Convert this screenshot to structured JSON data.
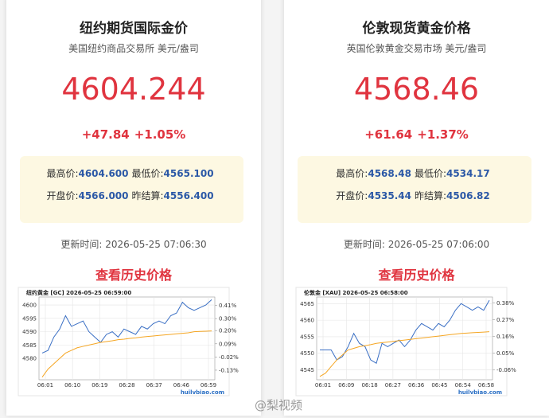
{
  "cards": [
    {
      "title": "纽约期货国际金价",
      "subtitle": "美国纽约商品交易所 美元/盎司",
      "price": "4604.244",
      "change": "+47.84",
      "change_pct": "+1.05%",
      "stats": [
        {
          "label": "最高价:",
          "value": "4604.600"
        },
        {
          "label": "最低价:",
          "value": "4565.100"
        },
        {
          "label": "开盘价:",
          "value": "4566.000"
        },
        {
          "label": "昨结算:",
          "value": "4556.400"
        }
      ],
      "updated": "更新时间: 2026-05-25 07:06:30",
      "link": "查看历史价格",
      "chart": {
        "type": "line",
        "title": "纽约黄金 [GC]  2026-05-25 06:59:00",
        "ylim": [
          4572,
          4603
        ],
        "yticks": [
          4580,
          4585,
          4590,
          4595,
          4600
        ],
        "y2lim": [
          -0.21,
          0.48
        ],
        "y2ticks": [
          {
            "value": 0.41,
            "label": "0.41%"
          },
          {
            "value": 0.3,
            "label": "0.30%"
          },
          {
            "value": 0.2,
            "label": "0.20%"
          },
          {
            "value": 0.09,
            "label": "0.09%"
          },
          {
            "value": -0.02,
            "label": "-0.02%"
          },
          {
            "value": -0.13,
            "label": "-0.13%"
          }
        ],
        "xticks": [
          "06:01",
          "06:10",
          "06:19",
          "06:28",
          "06:37",
          "06:46",
          "06:59"
        ],
        "series": [
          {
            "color": "#3a6fc4",
            "values": [
              4582,
              4583,
              4588,
              4591,
              4596,
              4592,
              4593,
              4594,
              4590,
              4588,
              4586,
              4589,
              4590,
              4588,
              4591,
              4590,
              4589,
              4592,
              4591,
              4593,
              4594,
              4593,
              4596,
              4597,
              4601,
              4599,
              4598,
              4599,
              4600,
              4602
            ]
          },
          {
            "color": "#f5a623",
            "values": [
              4573,
              4576,
              4578,
              4580,
              4582,
              4583,
              4584,
              4584.5,
              4585,
              4585.5,
              4586,
              4586.3,
              4586.6,
              4587,
              4587.2,
              4587.5,
              4587.7,
              4588,
              4588.2,
              4588.4,
              4588.6,
              4588.8,
              4589,
              4589.2,
              4589.4,
              4589.6,
              4590,
              4590.1,
              4590.2,
              4590.3
            ]
          }
        ],
        "source": "huilvbiao.com"
      }
    },
    {
      "title": "伦敦现货黄金价格",
      "subtitle": "英国伦敦黄金交易市场 美元/盎司",
      "price": "4568.46",
      "change": "+61.64",
      "change_pct": "+1.37%",
      "stats": [
        {
          "label": "最高价:",
          "value": "4568.48"
        },
        {
          "label": "最低价:",
          "value": "4534.17"
        },
        {
          "label": "开盘价:",
          "value": "4535.44"
        },
        {
          "label": "昨结算:",
          "value": "4506.82"
        }
      ],
      "updated": "更新时间: 2026-05-25 07:06:00",
      "link": "查看历史价格",
      "chart": {
        "type": "line",
        "title": "伦敦金 [XAU]  2026-05-25 06:58:00",
        "ylim": [
          4542,
          4567
        ],
        "yticks": [
          4545,
          4550,
          4555,
          4560,
          4565
        ],
        "y2lim": [
          -0.125,
          0.419
        ],
        "y2ticks": [
          {
            "value": 0.38,
            "label": "0.38%"
          },
          {
            "value": 0.27,
            "label": "0.27%"
          },
          {
            "value": 0.16,
            "label": "0.16%"
          },
          {
            "value": 0.05,
            "label": "0.05%"
          },
          {
            "value": -0.06,
            "label": "-0.06%"
          }
        ],
        "xticks": [
          "06:01",
          "06:09",
          "06:18",
          "06:27",
          "06:36",
          "06:45",
          "06:54",
          "06:58"
        ],
        "series": [
          {
            "color": "#3a6fc4",
            "values": [
              4551,
              4551,
              4551,
              4548,
              4549,
              4552,
              4556,
              4553,
              4552,
              4548,
              4547,
              4553,
              4552,
              4553,
              4554,
              4552,
              4554,
              4557,
              4559,
              4558,
              4557,
              4559,
              4558,
              4560,
              4563,
              4565,
              4564,
              4563,
              4564,
              4563,
              4566
            ]
          },
          {
            "color": "#f5a623",
            "values": [
              4543,
              4544,
              4546,
              4548,
              4549.5,
              4551,
              4551.5,
              4552,
              4552.3,
              4552.6,
              4553,
              4553.2,
              4553.4,
              4553.6,
              4553.8,
              4554,
              4554.2,
              4554.4,
              4554.6,
              4554.8,
              4555,
              4555.2,
              4555.4,
              4555.6,
              4555.8,
              4556,
              4556.1,
              4556.2,
              4556.3,
              4556.4,
              4556.5
            ]
          }
        ],
        "source": "huilvbiao.com"
      }
    }
  ],
  "watermark": "@梨视频"
}
